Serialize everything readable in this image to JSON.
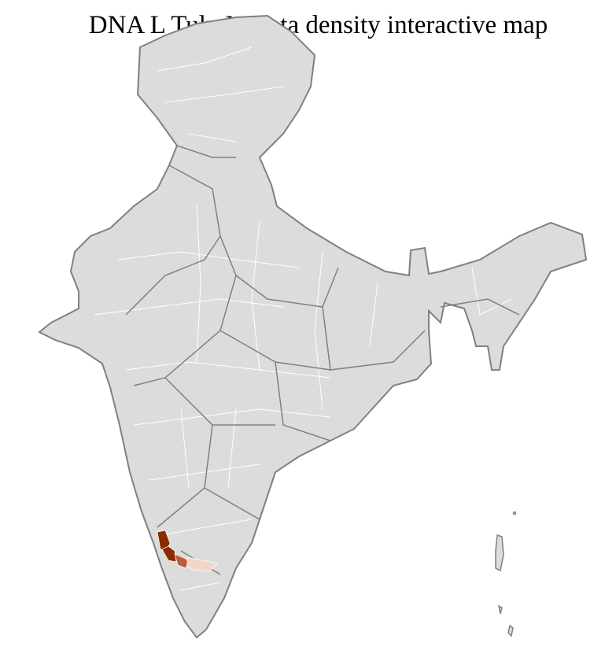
{
  "title": "DNA L Tulu Marata density interactive map",
  "colors": {
    "base_fill": "#dcdcdc",
    "state_border": "#808080",
    "district_border": "#ffffff",
    "density_high": "#8b2a00",
    "density_mid": "#b5603a",
    "density_low": "#f2d6c8"
  }
}
